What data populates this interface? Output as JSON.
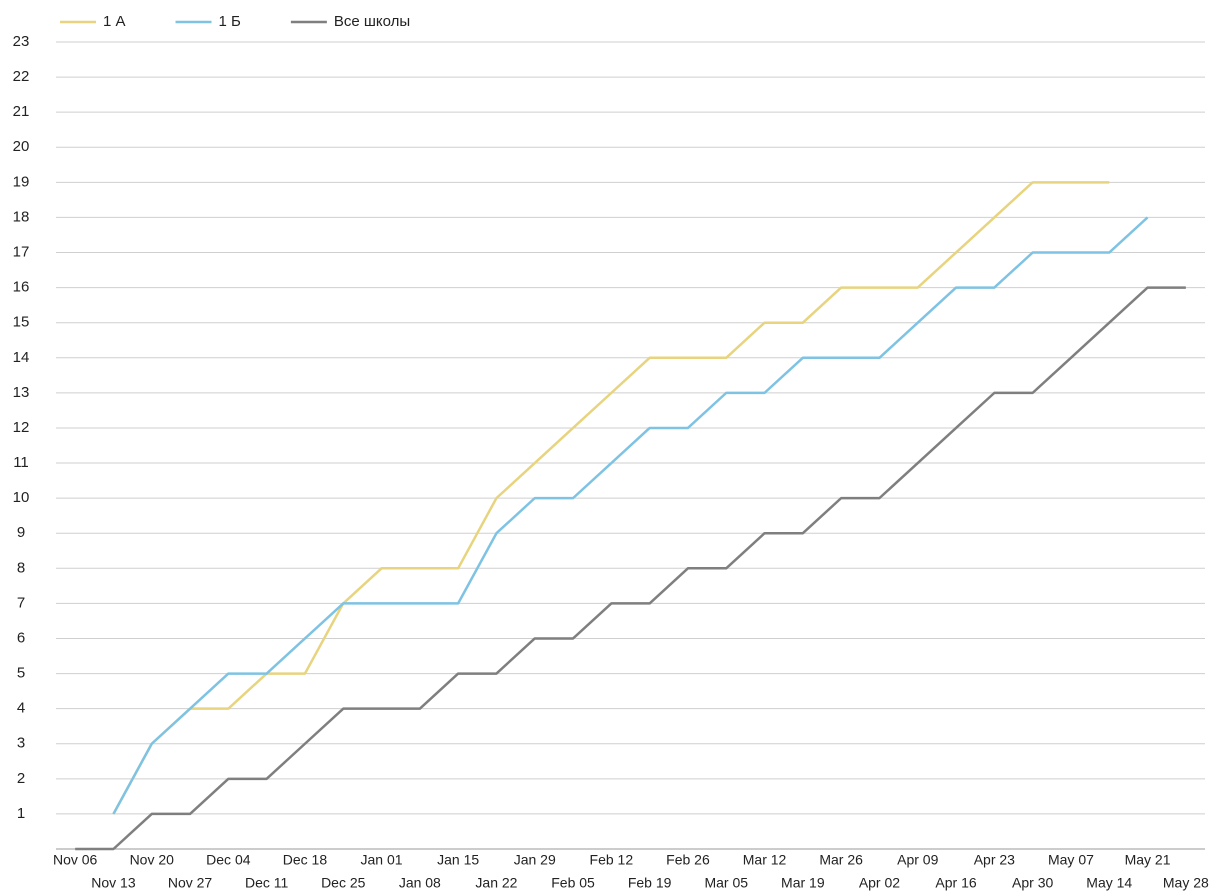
{
  "chart_data": {
    "type": "line",
    "categories": [
      "Nov 06",
      "Nov 13",
      "Nov 20",
      "Nov 27",
      "Dec 04",
      "Dec 11",
      "Dec 18",
      "Dec 25",
      "Jan 01",
      "Jan 08",
      "Jan 15",
      "Jan 22",
      "Jan 29",
      "Feb 05",
      "Feb 12",
      "Feb 19",
      "Feb 26",
      "Mar 05",
      "Mar 12",
      "Mar 19",
      "Mar 26",
      "Apr 02",
      "Apr 09",
      "Apr 16",
      "Apr 23",
      "Apr 30",
      "May 07",
      "May 14",
      "May 21",
      "May 28"
    ],
    "series": [
      {
        "name": "1 А",
        "color": "#e8d47e",
        "values": [
          null,
          1,
          3,
          4,
          4,
          5,
          5,
          7,
          8,
          8,
          8,
          10,
          11,
          12,
          13,
          14,
          14,
          14,
          15,
          15,
          16,
          16,
          16,
          17,
          18,
          19,
          19,
          19,
          null,
          null
        ]
      },
      {
        "name": "1 Б",
        "color": "#7ec3e3",
        "values": [
          null,
          1,
          3,
          4,
          5,
          5,
          6,
          7,
          7,
          7,
          7,
          9,
          10,
          10,
          11,
          12,
          12,
          13,
          13,
          14,
          14,
          14,
          15,
          16,
          16,
          17,
          17,
          17,
          18,
          null
        ]
      },
      {
        "name": "Все школы",
        "color": "#7f7f7f",
        "values": [
          0,
          0,
          1,
          1,
          2,
          2,
          3,
          4,
          4,
          4,
          5,
          5,
          6,
          6,
          7,
          7,
          8,
          8,
          9,
          9,
          10,
          10,
          11,
          12,
          13,
          13,
          14,
          15,
          16,
          16
        ]
      }
    ],
    "ylim": [
      0,
      23
    ],
    "yticks": [
      1,
      2,
      3,
      4,
      5,
      6,
      7,
      8,
      9,
      10,
      11,
      12,
      13,
      14,
      15,
      16,
      17,
      18,
      19,
      20,
      21,
      22,
      23
    ],
    "grid": true,
    "legend": "top-left"
  }
}
